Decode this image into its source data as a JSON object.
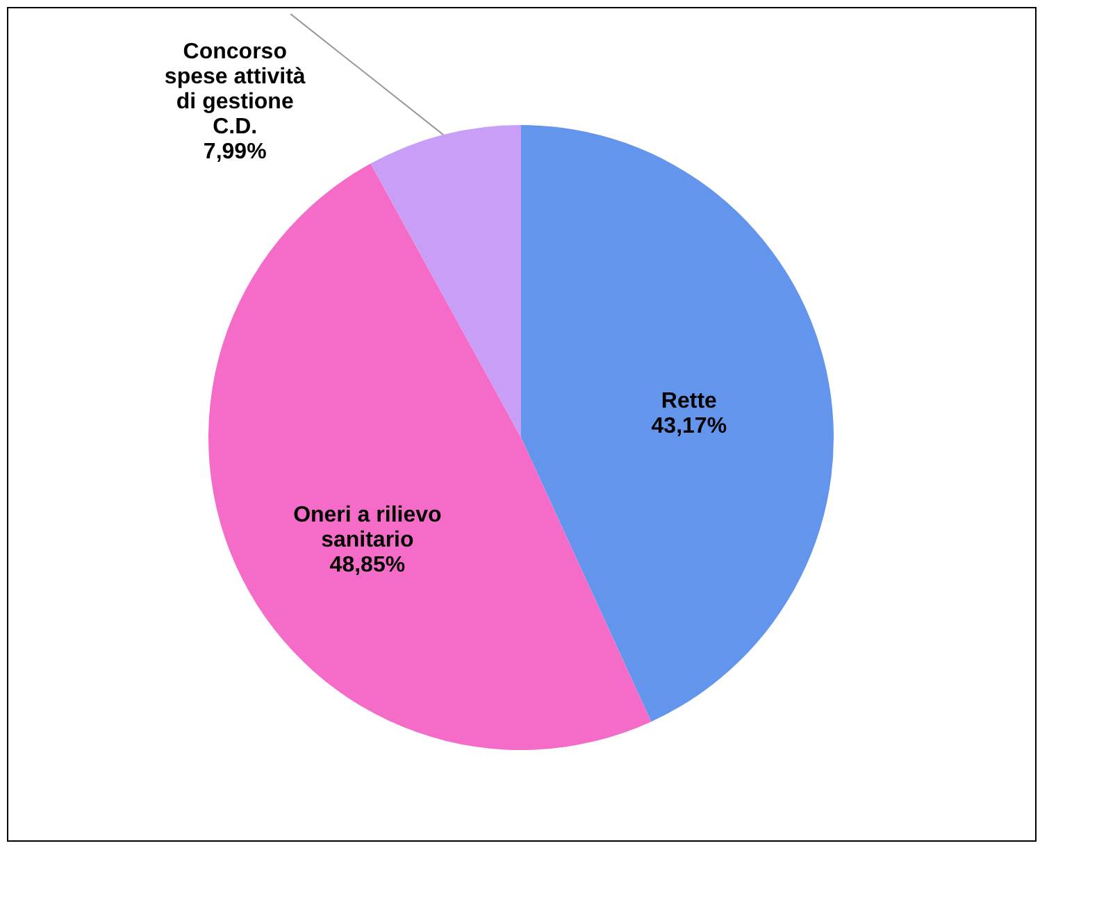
{
  "chart_data": {
    "type": "pie",
    "categories": [
      "Rette",
      "Oneri a rilievo\nsanitario",
      "Concorso\nspese attività\ndi gestione\nC.D."
    ],
    "values": [
      43.17,
      48.85,
      7.99
    ],
    "value_labels": [
      "43,17%",
      "48,85%",
      "7,99%"
    ],
    "colors": [
      "#6495ed",
      "#f46cc8",
      "#c89ef6"
    ],
    "legend": false
  }
}
